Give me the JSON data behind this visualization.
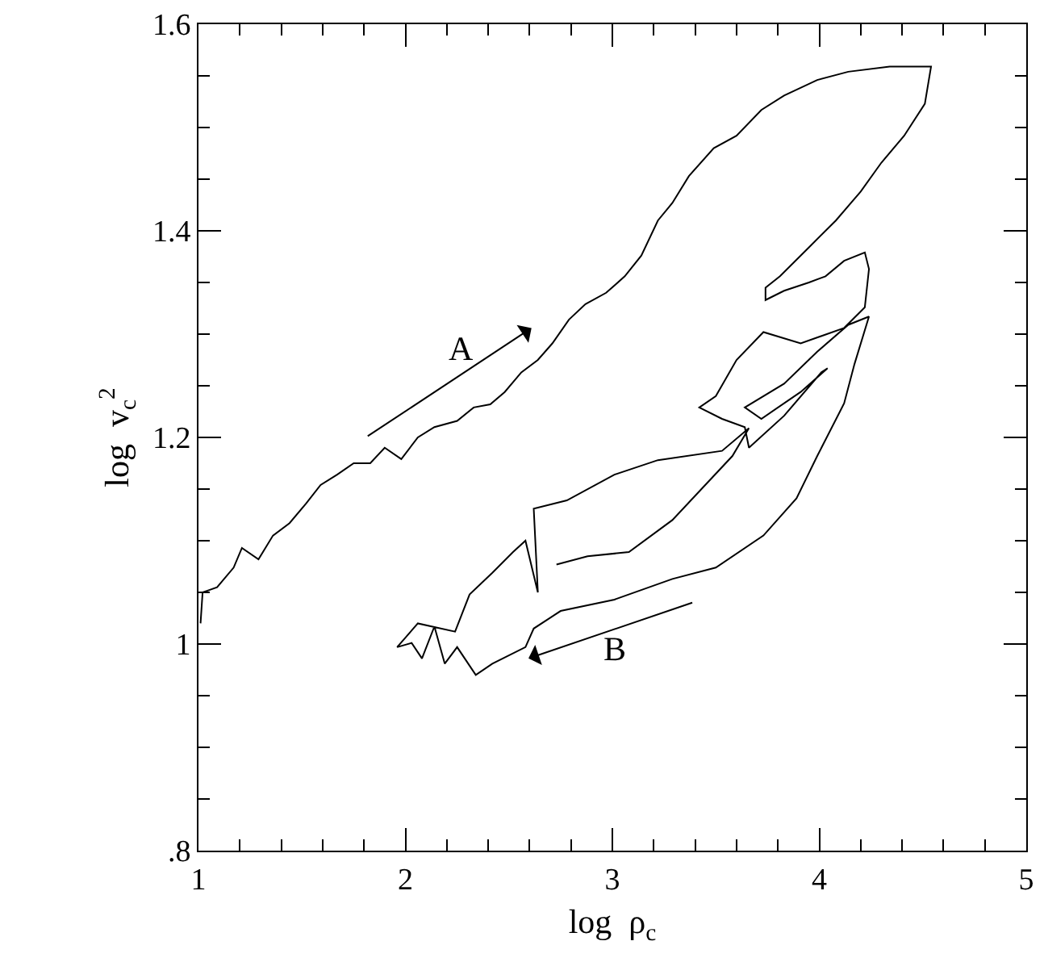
{
  "chart_data": {
    "type": "line",
    "xlabel": "log  ρ$_{c}$",
    "ylabel": "log  v$_{c}$$^{2}$",
    "x": [
      1.01,
      1.02,
      1.09,
      1.17,
      1.21,
      1.29,
      1.36,
      1.44,
      1.52,
      1.59,
      1.67,
      1.75,
      1.83,
      1.9,
      1.98,
      2.06,
      2.14,
      2.25,
      2.33,
      2.41,
      2.48,
      2.56,
      2.64,
      2.71,
      2.79,
      2.87,
      2.97,
      3.06,
      3.14,
      3.22,
      3.29,
      3.37,
      3.49,
      3.6,
      3.72,
      3.83,
      3.99,
      4.14,
      4.34,
      4.54,
      4.51,
      4.41,
      4.3,
      4.2,
      4.08,
      3.95,
      3.81,
      3.74,
      3.74,
      3.83,
      3.95,
      4.03,
      4.12,
      4.22,
      4.24,
      4.22,
      4.12,
      3.91,
      3.73,
      3.6,
      3.5,
      3.42,
      3.53,
      3.64,
      3.66,
      3.83,
      4.01,
      4.04,
      3.91,
      3.72,
      3.64,
      3.83,
      3.99,
      4.14,
      4.24,
      4.17,
      4.12,
      3.99,
      3.89,
      3.73,
      3.5,
      3.29,
      3.01,
      2.75,
      2.62,
      2.58,
      2.42,
      2.34,
      2.25,
      2.19,
      2.14,
      2.08,
      2.03,
      1.96,
      2.06,
      2.24,
      2.31,
      2.42,
      2.52,
      2.58,
      2.64,
      2.62,
      2.78,
      3.01,
      3.22,
      3.53,
      3.66,
      3.58,
      3.29,
      3.08,
      2.88,
      2.73
    ],
    "series": [
      {
        "color": "#000000",
        "values": [
          1.02,
          1.05,
          1.055,
          1.074,
          1.093,
          1.082,
          1.105,
          1.117,
          1.136,
          1.154,
          1.164,
          1.175,
          1.175,
          1.19,
          1.179,
          1.2,
          1.21,
          1.216,
          1.229,
          1.232,
          1.244,
          1.263,
          1.275,
          1.291,
          1.314,
          1.329,
          1.34,
          1.356,
          1.376,
          1.41,
          1.427,
          1.453,
          1.48,
          1.492,
          1.517,
          1.531,
          1.546,
          1.554,
          1.559,
          1.559,
          1.523,
          1.492,
          1.466,
          1.438,
          1.41,
          1.384,
          1.356,
          1.345,
          1.333,
          1.342,
          1.35,
          1.356,
          1.371,
          1.379,
          1.363,
          1.326,
          1.306,
          1.291,
          1.302,
          1.275,
          1.24,
          1.229,
          1.218,
          1.21,
          1.19,
          1.221,
          1.263,
          1.267,
          1.244,
          1.218,
          1.229,
          1.252,
          1.283,
          1.309,
          1.317,
          1.271,
          1.233,
          1.182,
          1.141,
          1.105,
          1.074,
          1.063,
          1.043,
          1.032,
          1.015,
          0.997,
          0.981,
          0.97,
          0.997,
          0.981,
          1.017,
          0.986,
          1.001,
          0.997,
          1.02,
          1.012,
          1.048,
          1.069,
          1.089,
          1.1,
          1.05,
          1.131,
          1.139,
          1.164,
          1.178,
          1.187,
          1.209,
          1.182,
          1.12,
          1.089,
          1.085,
          1.077
        ]
      }
    ],
    "xlim": [
      1,
      5
    ],
    "xticks": [
      1,
      {
        "value": 1.2,
        "label": null
      },
      {
        "value": 1.4,
        "label": null
      },
      {
        "value": 1.6,
        "label": null
      },
      {
        "value": 1.8,
        "label": null
      },
      2,
      {
        "value": 2.2,
        "label": null
      },
      {
        "value": 2.4,
        "label": null
      },
      {
        "value": 2.6,
        "label": null
      },
      {
        "value": 2.8,
        "label": null
      },
      3,
      {
        "value": 3.2,
        "label": null
      },
      {
        "value": 3.4,
        "label": null
      },
      {
        "value": 3.6,
        "label": null
      },
      {
        "value": 3.8,
        "label": null
      },
      4,
      {
        "value": 4.2,
        "label": null
      },
      {
        "value": 4.4,
        "label": null
      },
      {
        "value": 4.6,
        "label": null
      },
      {
        "value": 4.8,
        "label": null
      },
      5
    ],
    "ylim": [
      0.8,
      1.6
    ],
    "yticks": [
      {
        "value": 0.8,
        "label": ".8"
      },
      {
        "value": 0.85,
        "label": null
      },
      {
        "value": 0.9,
        "label": null
      },
      {
        "value": 0.95,
        "label": null
      },
      1,
      {
        "value": 1.05,
        "label": null
      },
      {
        "value": 1.1,
        "label": null
      },
      {
        "value": 1.15,
        "label": null
      },
      1.2,
      {
        "value": 1.25,
        "label": null
      },
      {
        "value": 1.3,
        "label": null
      },
      {
        "value": 1.35,
        "label": null
      },
      1.4,
      {
        "value": 1.45,
        "label": null
      },
      {
        "value": 1.5,
        "label": null
      },
      {
        "value": 1.55,
        "label": null
      },
      1.6
    ],
    "annotations": [
      "A",
      "B"
    ],
    "marker": "none",
    "line_style": "solid"
  }
}
